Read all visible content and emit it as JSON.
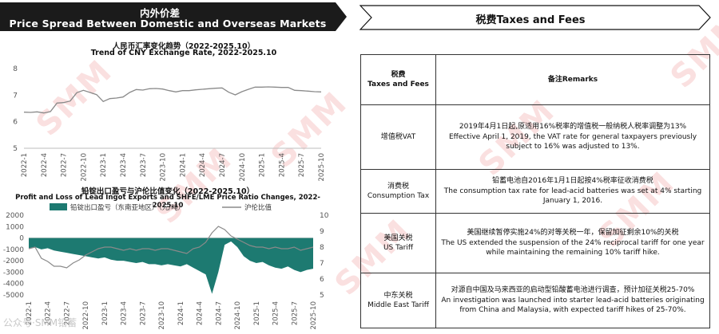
{
  "left_header": {
    "title_cn": "内外价差",
    "title_en": "Price Spread Between Domestic and Overseas Markets"
  },
  "right_header": {
    "title": "税费Taxes and Fees"
  },
  "colors": {
    "banner_dark": "#1b1b1b",
    "teal": "#1d7a71",
    "gray_line": "#8a8a8a",
    "watermark": "#e24b4b"
  },
  "chart_data": [
    {
      "type": "line",
      "title": "人民币汇率变化趋势（2022-2025.10）",
      "subtitle": "Trend of CNY Exchange Rate, 2022-2025.10",
      "x_ticks": [
        "2022-1",
        "2022-4",
        "2022-7",
        "2022-10",
        "2023-1",
        "2023-4",
        "2023-7",
        "2023-10",
        "2024-1",
        "2024-4",
        "2024-7",
        "2024-10",
        "2025-1",
        "2025-4",
        "2025-7",
        "2025-10"
      ],
      "ylim": [
        5,
        8
      ],
      "y_ticks": [
        5,
        6,
        7,
        8
      ],
      "grid": false,
      "series": [
        {
          "x": [
            0,
            1,
            2,
            3,
            4,
            5,
            6,
            7,
            8,
            9,
            10,
            11,
            12,
            13,
            14,
            15,
            16,
            17,
            18,
            19,
            20,
            21,
            22,
            23,
            24,
            25,
            26,
            27,
            28,
            29,
            30,
            31,
            32,
            33,
            34,
            35,
            36,
            37,
            38,
            39,
            40,
            41,
            42,
            43,
            44,
            45
          ],
          "y": [
            6.36,
            6.35,
            6.37,
            6.33,
            6.38,
            6.7,
            6.72,
            6.78,
            7.09,
            7.18,
            7.1,
            7.02,
            6.76,
            6.87,
            6.89,
            6.93,
            7.1,
            7.21,
            7.19,
            7.24,
            7.25,
            7.23,
            7.17,
            7.12,
            7.17,
            7.17,
            7.2,
            7.22,
            7.24,
            7.26,
            7.27,
            7.11,
            7.01,
            7.13,
            7.22,
            7.3,
            7.3,
            7.31,
            7.3,
            7.29,
            7.29,
            7.18,
            7.17,
            7.15,
            7.13,
            7.12
          ]
        }
      ]
    },
    {
      "type": "bar",
      "title": "铅锭出口盈亏与沪伦比值变化（2022-2025.10）",
      "subtitle": "Profit and Loss of Lead Ingot Exports and SHFE/LME Price Ratio Changes, 2022-2025.10",
      "x_ticks": [
        "2022-1",
        "2022-4",
        "2022-7",
        "2022-10",
        "2023-1",
        "2023-4",
        "2023-7",
        "2023-10",
        "2024-1",
        "2024-4",
        "2024-7",
        "2024-10",
        "2025-1",
        "2025-4",
        "2025-7",
        "2025-10"
      ],
      "ylim_left": [
        -5000,
        2000
      ],
      "y_ticks_left": [
        2000,
        1000,
        0,
        -1000,
        -2000,
        -3000,
        -4000,
        -5000
      ],
      "ylim_right": [
        5,
        10
      ],
      "y_ticks_right": [
        10,
        9,
        8,
        7,
        6,
        5
      ],
      "legend_placement": "top",
      "series": [
        {
          "name": "铅锭出口盈亏（东南亚地区）（元/吨）",
          "kind": "area",
          "axis": "left",
          "x": [
            0,
            1,
            2,
            3,
            4,
            5,
            6,
            7,
            8,
            9,
            10,
            11,
            12,
            13,
            14,
            15,
            16,
            17,
            18,
            19,
            20,
            21,
            22,
            23,
            24,
            25,
            26,
            27,
            28,
            29,
            30,
            31,
            32,
            33,
            34,
            35,
            36,
            37,
            38,
            39,
            40,
            41,
            42,
            43,
            44,
            45
          ],
          "y": [
            -900,
            -800,
            -1000,
            -900,
            -1100,
            -1200,
            -1300,
            -1400,
            -1500,
            -1600,
            -1700,
            -1800,
            -1700,
            -1900,
            -2000,
            -2000,
            -2100,
            -2200,
            -2100,
            -2300,
            -2300,
            -2400,
            -2300,
            -2400,
            -2500,
            -2300,
            -2600,
            -2900,
            -3200,
            -4900,
            -3000,
            -600,
            -300,
            -800,
            -1600,
            -2000,
            -2200,
            -2100,
            -2400,
            -2600,
            -2700,
            -2500,
            -2800,
            -3000,
            -2800,
            -2700
          ]
        },
        {
          "name": "沪伦比值",
          "kind": "line",
          "axis": "right",
          "x": [
            0,
            1,
            2,
            3,
            4,
            5,
            6,
            7,
            8,
            9,
            10,
            11,
            12,
            13,
            14,
            15,
            16,
            17,
            18,
            19,
            20,
            21,
            22,
            23,
            24,
            25,
            26,
            27,
            28,
            29,
            30,
            31,
            32,
            33,
            34,
            35,
            36,
            37,
            38,
            39,
            40,
            41,
            42,
            43,
            44,
            45
          ],
          "y": [
            7.9,
            8.0,
            7.3,
            7.1,
            6.8,
            6.8,
            6.7,
            7.0,
            7.2,
            7.5,
            7.7,
            7.9,
            8.0,
            8.0,
            7.9,
            7.8,
            7.9,
            7.8,
            7.9,
            7.9,
            7.8,
            7.9,
            7.9,
            7.8,
            7.7,
            7.6,
            7.9,
            8.0,
            8.3,
            8.9,
            9.3,
            9.1,
            8.7,
            8.5,
            8.3,
            8.1,
            8.0,
            8.0,
            7.9,
            8.0,
            7.9,
            7.9,
            8.0,
            7.8,
            7.9,
            8.0
          ]
        }
      ]
    }
  ],
  "table": {
    "headers": {
      "col1_cn": "税费",
      "col1_en": "Taxes and Fees",
      "col2": "备注Remarks"
    },
    "rows": [
      {
        "name_cn": "增值税VAT",
        "name_en": "",
        "remark_cn": "2019年4月1日起,原适用16%税率的增值税一般纳税人税率调整为13%",
        "remark_en": "Effective April 1, 2019, the VAT rate for general taxpayers previously subject to 16% was adjusted to 13%."
      },
      {
        "name_cn": "消费税",
        "name_en": "Consumption Tax",
        "remark_cn": "铅蓄电池自2016年1月1日起按4%税率征收消费税",
        "remark_en": "The consumption tax rate for lead-acid batteries was set at 4% starting January 1, 2016."
      },
      {
        "name_cn": "美国关税",
        "name_en": "US Tariff",
        "remark_cn": "美国继续暂停实施24%的对等关税一年，保留加征剩余10%的关税",
        "remark_en": "The US extended the suspension of the 24% reciprocal tariff for one year while maintaining the remaining 10% tariff hike."
      },
      {
        "name_cn": "中东关税",
        "name_en": "Middle East Tariff",
        "remark_cn": "对源自中国及马来西亚的启动型铅酸蓄电池进行调查，预计加征关税25-70%",
        "remark_en": "An investigation was launched into starter lead-acid batteries originating from China and Malaysia, with expected tariff hikes of 25-70%."
      }
    ]
  },
  "watermark": {
    "text": "SMM"
  },
  "footer": {
    "logo_text": "公众号·SMM铅蓄"
  }
}
